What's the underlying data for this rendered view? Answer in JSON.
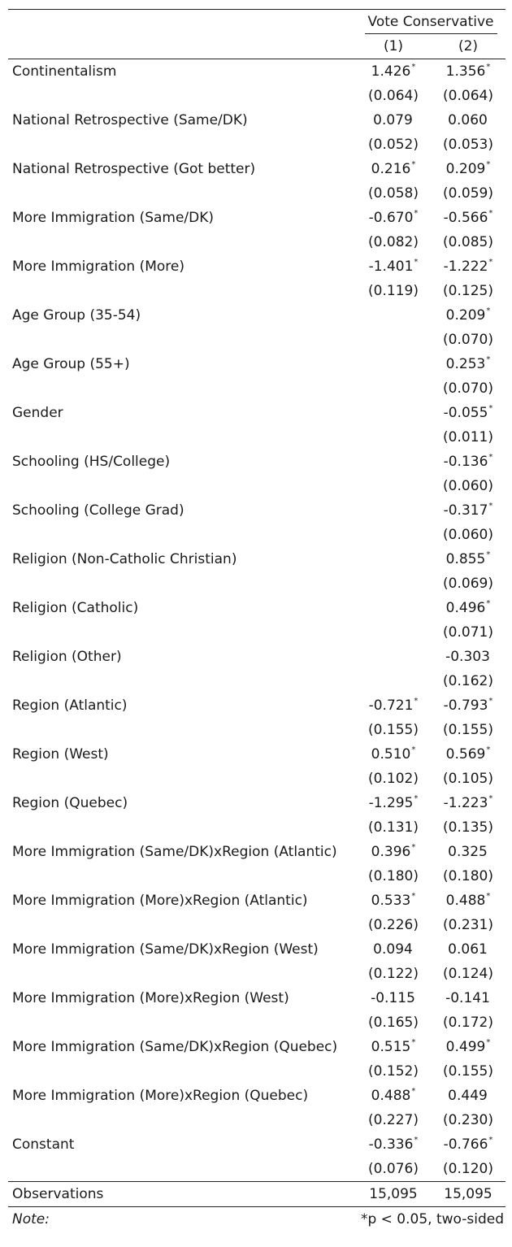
{
  "header": {
    "group_label": "Vote Conservative",
    "columns": [
      "(1)",
      "(2)"
    ]
  },
  "rows": [
    {
      "label": "Continentalism",
      "c1": "1.426",
      "s1": "*",
      "c2": "1.356",
      "s2": "*",
      "se1": "(0.064)",
      "se2": "(0.064)"
    },
    {
      "label": "National Retrospective (Same/DK)",
      "c1": "0.079",
      "s1": "",
      "c2": "0.060",
      "s2": "",
      "se1": "(0.052)",
      "se2": "(0.053)"
    },
    {
      "label": "National Retrospective (Got better)",
      "c1": "0.216",
      "s1": "*",
      "c2": "0.209",
      "s2": "*",
      "se1": "(0.058)",
      "se2": "(0.059)"
    },
    {
      "label": "More Immigration (Same/DK)",
      "c1": "-0.670",
      "s1": "*",
      "c2": "-0.566",
      "s2": "*",
      "se1": "(0.082)",
      "se2": "(0.085)"
    },
    {
      "label": "More Immigration (More)",
      "c1": "-1.401",
      "s1": "*",
      "c2": "-1.222",
      "s2": "*",
      "se1": "(0.119)",
      "se2": "(0.125)"
    },
    {
      "label": "Age Group (35-54)",
      "c1": "",
      "s1": "",
      "c2": "0.209",
      "s2": "*",
      "se1": "",
      "se2": "(0.070)"
    },
    {
      "label": "Age Group (55+)",
      "c1": "",
      "s1": "",
      "c2": "0.253",
      "s2": "*",
      "se1": "",
      "se2": "(0.070)"
    },
    {
      "label": "Gender",
      "c1": "",
      "s1": "",
      "c2": "-0.055",
      "s2": "*",
      "se1": "",
      "se2": "(0.011)"
    },
    {
      "label": "Schooling (HS/College)",
      "c1": "",
      "s1": "",
      "c2": "-0.136",
      "s2": "*",
      "se1": "",
      "se2": "(0.060)"
    },
    {
      "label": "Schooling (College Grad)",
      "c1": "",
      "s1": "",
      "c2": "-0.317",
      "s2": "*",
      "se1": "",
      "se2": "(0.060)"
    },
    {
      "label": "Religion (Non-Catholic Christian)",
      "c1": "",
      "s1": "",
      "c2": "0.855",
      "s2": "*",
      "se1": "",
      "se2": "(0.069)"
    },
    {
      "label": "Religion (Catholic)",
      "c1": "",
      "s1": "",
      "c2": "0.496",
      "s2": "*",
      "se1": "",
      "se2": "(0.071)"
    },
    {
      "label": "Religion (Other)",
      "c1": "",
      "s1": "",
      "c2": "-0.303",
      "s2": "",
      "se1": "",
      "se2": "(0.162)"
    },
    {
      "label": "Region (Atlantic)",
      "c1": "-0.721",
      "s1": "*",
      "c2": "-0.793",
      "s2": "*",
      "se1": "(0.155)",
      "se2": "(0.155)"
    },
    {
      "label": "Region (West)",
      "c1": "0.510",
      "s1": "*",
      "c2": "0.569",
      "s2": "*",
      "se1": "(0.102)",
      "se2": "(0.105)"
    },
    {
      "label": "Region (Quebec)",
      "c1": "-1.295",
      "s1": "*",
      "c2": "-1.223",
      "s2": "*",
      "se1": "(0.131)",
      "se2": "(0.135)"
    },
    {
      "label": "More Immigration (Same/DK)xRegion (Atlantic)",
      "c1": "0.396",
      "s1": "*",
      "c2": "0.325",
      "s2": "",
      "se1": "(0.180)",
      "se2": "(0.180)"
    },
    {
      "label": "More Immigration (More)xRegion (Atlantic)",
      "c1": "0.533",
      "s1": "*",
      "c2": "0.488",
      "s2": "*",
      "se1": "(0.226)",
      "se2": "(0.231)"
    },
    {
      "label": "More Immigration (Same/DK)xRegion (West)",
      "c1": "0.094",
      "s1": "",
      "c2": "0.061",
      "s2": "",
      "se1": "(0.122)",
      "se2": "(0.124)"
    },
    {
      "label": "More Immigration (More)xRegion (West)",
      "c1": "-0.115",
      "s1": "",
      "c2": "-0.141",
      "s2": "",
      "se1": "(0.165)",
      "se2": "(0.172)"
    },
    {
      "label": "More Immigration (Same/DK)xRegion (Quebec)",
      "c1": "0.515",
      "s1": "*",
      "c2": "0.499",
      "s2": "*",
      "se1": "(0.152)",
      "se2": "(0.155)"
    },
    {
      "label": "More Immigration (More)xRegion (Quebec)",
      "c1": "0.488",
      "s1": "*",
      "c2": "0.449",
      "s2": "",
      "se1": "(0.227)",
      "se2": "(0.230)"
    },
    {
      "label": "Constant",
      "c1": "-0.336",
      "s1": "*",
      "c2": "-0.766",
      "s2": "*",
      "se1": "(0.076)",
      "se2": "(0.120)"
    }
  ],
  "observations": {
    "label": "Observations",
    "c1": "15,095",
    "c2": "15,095"
  },
  "note": {
    "label": "Note:",
    "text": "*p < 0.05, two-sided"
  }
}
